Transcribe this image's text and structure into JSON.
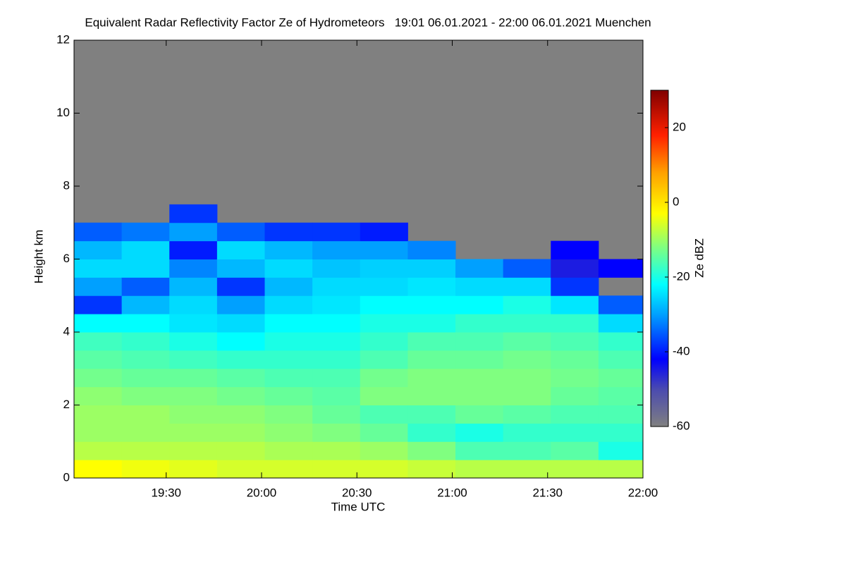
{
  "chart_data": {
    "type": "heatmap",
    "title": "Equivalent Radar Reflectivity Factor Ze of Hydrometeors   19:01 06.01.2021 - 22:00 06.01.2021 Muenchen",
    "x_label": "Time UTC",
    "y_label": "Height km",
    "colorbar_label": "Ze dBZ",
    "xlim": [
      "19:01",
      "22:00"
    ],
    "xticks": [
      "19:30",
      "20:00",
      "20:30",
      "21:00",
      "21:30",
      "22:00"
    ],
    "ylim": [
      0,
      12
    ],
    "yticks": [
      0,
      2,
      4,
      6,
      8,
      10,
      12
    ],
    "clim": [
      -60,
      30
    ],
    "cticks": [
      -60,
      -40,
      -20,
      0,
      20
    ],
    "background": "#808080",
    "colorscale": [
      {
        "value": -60,
        "color": "#808080"
      },
      {
        "value": -50,
        "color": "#4a4ab0"
      },
      {
        "value": -42,
        "color": "#0000ff"
      },
      {
        "value": -30,
        "color": "#00a0ff"
      },
      {
        "value": -22,
        "color": "#00ffff"
      },
      {
        "value": -12,
        "color": "#80ff80"
      },
      {
        "value": -3,
        "color": "#ffff00"
      },
      {
        "value": 8,
        "color": "#ffa000"
      },
      {
        "value": 18,
        "color": "#ff2000"
      },
      {
        "value": 30,
        "color": "#800000"
      }
    ],
    "x_bins": [
      "19:01",
      "19:16",
      "19:31",
      "19:46",
      "20:01",
      "20:16",
      "20:31",
      "20:46",
      "21:01",
      "21:16",
      "21:31",
      "21:46",
      "22:00"
    ],
    "y_bins": [
      0,
      0.5,
      1,
      1.5,
      2,
      2.5,
      3,
      3.5,
      4,
      4.5,
      5,
      5.5,
      6,
      6.5,
      7,
      7.5
    ],
    "z": [
      [
        -3,
        -8,
        -10,
        -10,
        -11,
        -13,
        -15,
        -17,
        -22,
        -38,
        -30,
        -25,
        -28,
        -35,
        null
      ],
      [
        -4,
        -8,
        -10,
        -10,
        -12,
        -14,
        -16,
        -18,
        -22,
        -28,
        -35,
        -25,
        -25,
        -33,
        null
      ],
      [
        -5,
        -8,
        -10,
        -11,
        -12,
        -14,
        -17,
        -20,
        -24,
        -25,
        -28,
        -32,
        -40,
        -30,
        -38
      ],
      [
        -6,
        -8,
        -10,
        -11,
        -13,
        -15,
        -18,
        -22,
        -25,
        -30,
        -38,
        -28,
        -25,
        -35,
        null
      ],
      [
        -6,
        -9,
        -11,
        -12,
        -14,
        -16,
        -18,
        -20,
        -22,
        -25,
        -28,
        -25,
        -28,
        -38,
        null
      ],
      [
        -6,
        -9,
        -12,
        -14,
        -15,
        -16,
        -18,
        -20,
        -22,
        -24,
        -25,
        -27,
        -30,
        -38,
        null
      ],
      [
        -6,
        -10,
        -14,
        -16,
        -12,
        -13,
        -16,
        -18,
        -20,
        -22,
        -25,
        -26,
        -30,
        -40,
        null
      ],
      [
        -7,
        -12,
        -18,
        -16,
        -12,
        -12,
        -14,
        -16,
        -20,
        -22,
        -24,
        -26,
        -32,
        null,
        null
      ],
      [
        -8,
        -16,
        -20,
        -14,
        -12,
        -12,
        -14,
        -16,
        -18,
        -22,
        -25,
        -30,
        null,
        null,
        null
      ],
      [
        -8,
        -16,
        -18,
        -15,
        -12,
        -12,
        -13,
        -15,
        -18,
        -20,
        -25,
        -35,
        null,
        null,
        null
      ],
      [
        -8,
        -15,
        -18,
        -16,
        -14,
        -13,
        -14,
        -16,
        -18,
        -24,
        -38,
        -45,
        -42,
        null,
        null
      ],
      [
        -8,
        -20,
        -18,
        -16,
        -15,
        -14,
        -16,
        -18,
        -25,
        -35,
        null,
        -42,
        null,
        null,
        null
      ]
    ]
  }
}
